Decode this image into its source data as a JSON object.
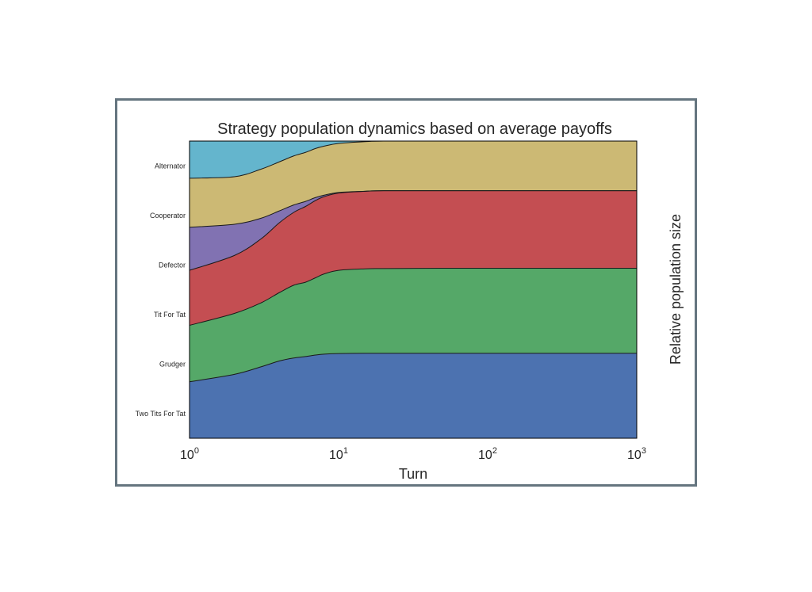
{
  "chart_data": {
    "type": "area",
    "title": "Strategy population dynamics based on average payoffs",
    "xlabel": "Turn",
    "ylabel": "Relative population size",
    "x_scale": "log",
    "xlim": [
      1,
      1000
    ],
    "ylim": [
      0,
      1
    ],
    "x_ticks": [
      {
        "value": 1,
        "base": "10",
        "exp": "0"
      },
      {
        "value": 10,
        "base": "10",
        "exp": "1"
      },
      {
        "value": 100,
        "base": "10",
        "exp": "2"
      },
      {
        "value": 1000,
        "base": "10",
        "exp": "3"
      }
    ],
    "grid": false,
    "stacked": true,
    "x": [
      1,
      2,
      3,
      4,
      5,
      6,
      7,
      8,
      10,
      15,
      20,
      50,
      100,
      1000
    ],
    "series": [
      {
        "name": "Two Tits For Tat",
        "color": "#4c72b0",
        "values": [
          0.19,
          0.215,
          0.24,
          0.26,
          0.27,
          0.275,
          0.28,
          0.283,
          0.285,
          0.286,
          0.286,
          0.286,
          0.286,
          0.286
        ]
      },
      {
        "name": "Grudger",
        "color": "#55a868",
        "values": [
          0.19,
          0.205,
          0.215,
          0.23,
          0.245,
          0.25,
          0.26,
          0.27,
          0.28,
          0.284,
          0.285,
          0.286,
          0.286,
          0.286
        ]
      },
      {
        "name": "Tit For Tat",
        "color": "#c44e52",
        "values": [
          0.185,
          0.195,
          0.215,
          0.235,
          0.245,
          0.255,
          0.26,
          0.26,
          0.26,
          0.261,
          0.262,
          0.261,
          0.261,
          0.261
        ]
      },
      {
        "name": "Defector",
        "color": "#8172b2",
        "values": [
          0.145,
          0.105,
          0.07,
          0.04,
          0.025,
          0.017,
          0.01,
          0.005,
          0.002,
          0.0,
          0.0,
          0.0,
          0.0,
          0.0
        ]
      },
      {
        "name": "Cooperator",
        "color": "#ccb974",
        "values": [
          0.165,
          0.16,
          0.165,
          0.165,
          0.165,
          0.165,
          0.165,
          0.165,
          0.165,
          0.167,
          0.167,
          0.167,
          0.167,
          0.167
        ]
      },
      {
        "name": "Alternator",
        "color": "#64b5cd",
        "values": [
          0.125,
          0.12,
          0.095,
          0.07,
          0.05,
          0.038,
          0.025,
          0.017,
          0.008,
          0.002,
          0.0,
          0.0,
          0.0,
          0.0
        ]
      }
    ]
  }
}
